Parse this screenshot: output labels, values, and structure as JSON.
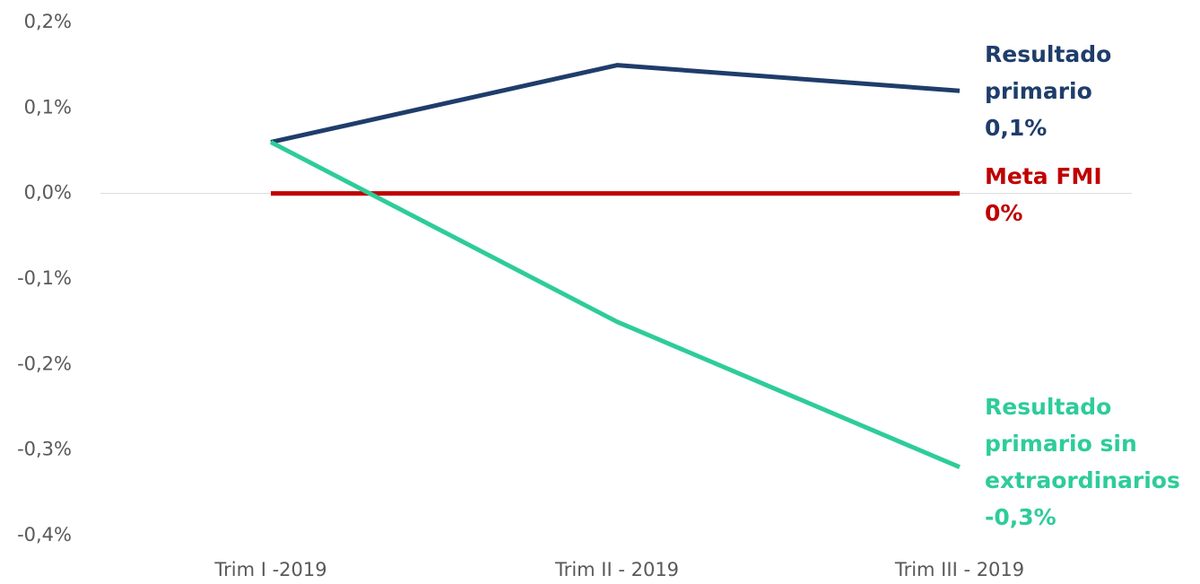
{
  "chart_data": {
    "type": "line",
    "categories": [
      "Trim I -2019",
      "Trim II - 2019",
      "Trim III - 2019"
    ],
    "series": [
      {
        "name": "Resultado primario",
        "color": "#1f3d6b",
        "values": [
          0.06,
          0.15,
          0.12
        ],
        "value_labels": [
          null,
          null,
          "0,1%"
        ]
      },
      {
        "name": "Meta FMI",
        "color": "#c00000",
        "values": [
          0,
          0,
          0
        ],
        "value_labels": [
          null,
          null,
          "0%"
        ]
      },
      {
        "name": "Resultado primario sin extraordinarios",
        "color": "#2ecc9a",
        "values": [
          0.06,
          -0.15,
          -0.32
        ],
        "value_labels": [
          null,
          null,
          "-0,3%"
        ]
      }
    ],
    "ylim": [
      -0.4,
      0.2
    ],
    "yticks": [
      {
        "value": 0.2,
        "label": "0,2%"
      },
      {
        "value": 0.1,
        "label": "0,1%"
      },
      {
        "value": 0,
        "label": "0,0%"
      },
      {
        "value": -0.1,
        "label": "-0,1%"
      },
      {
        "value": -0.2,
        "label": "-0,2%"
      },
      {
        "value": -0.3,
        "label": "-0,3%"
      },
      {
        "value": -0.4,
        "label": "-0,4%"
      }
    ],
    "grid": false
  }
}
